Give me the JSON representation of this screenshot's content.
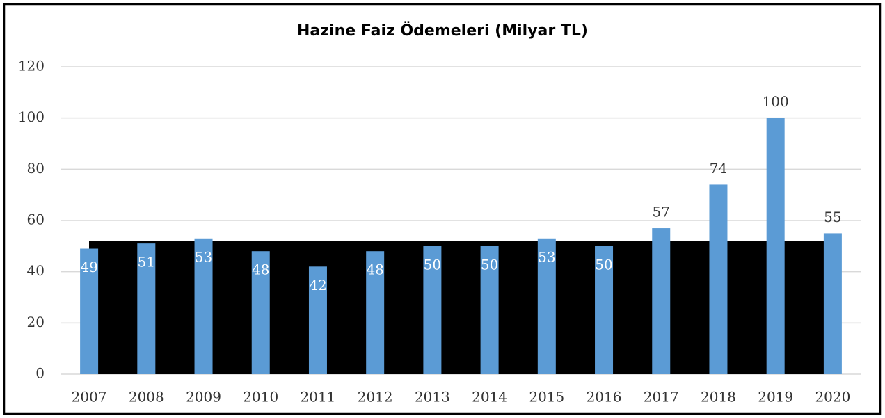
{
  "chart_data": {
    "type": "bar",
    "title": "Hazine Faiz Ödemeleri (Milyar TL)",
    "categories": [
      "2007",
      "2008",
      "2009",
      "2010",
      "2011",
      "2012",
      "2013",
      "2014",
      "2015",
      "2016",
      "2017",
      "2018",
      "2019",
      "2020"
    ],
    "values": [
      49,
      51,
      53,
      48,
      42,
      48,
      50,
      50,
      53,
      50,
      57,
      74,
      100,
      55
    ],
    "color": "#5b9bd5",
    "ylim": [
      0,
      120
    ],
    "yticks": [
      0,
      20,
      40,
      60,
      80,
      100,
      120
    ],
    "grid": true
  }
}
